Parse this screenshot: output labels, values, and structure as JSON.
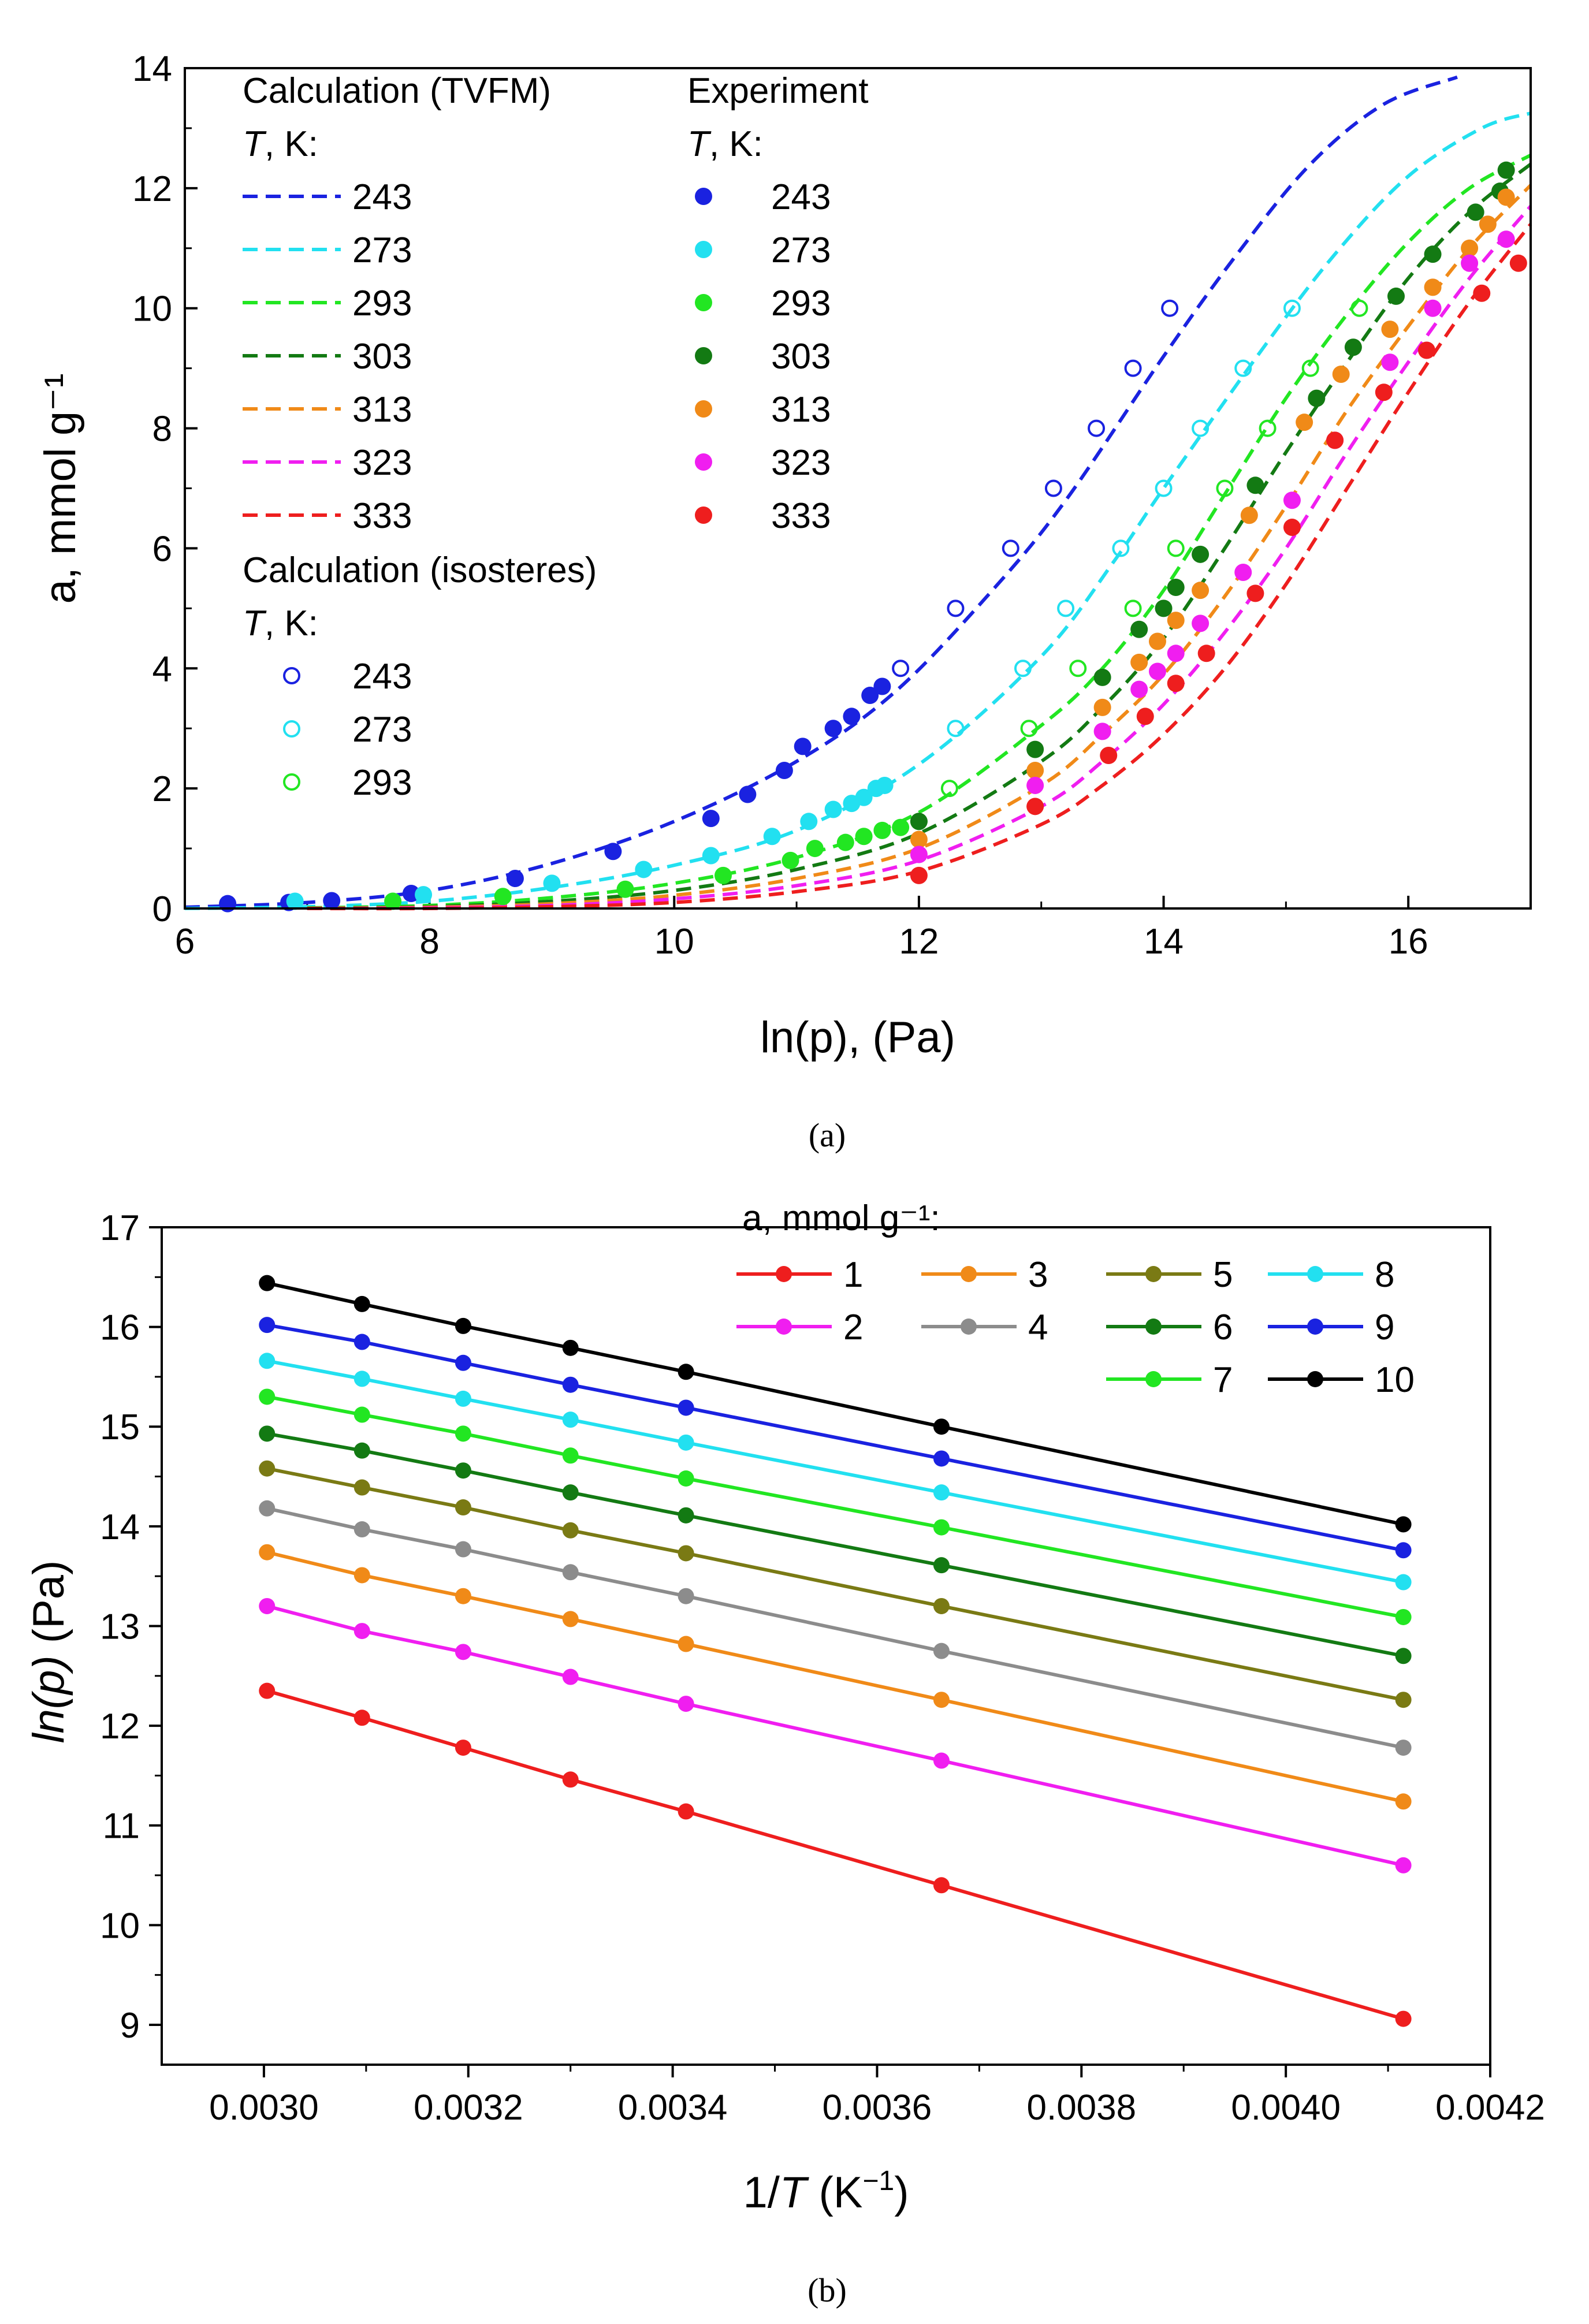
{
  "chart_data": [
    {
      "type": "scatter",
      "title": "",
      "xlabel": "ln(p), (Pa)",
      "ylabel": "a, mmol g⁻¹",
      "xlim": [
        6,
        17
      ],
      "ylim": [
        0,
        14
      ],
      "xticks": [
        "6",
        "8",
        "10",
        "12",
        "14",
        "16"
      ],
      "yticks": [
        "0",
        "2",
        "4",
        "6",
        "8",
        "10",
        "12",
        "14"
      ],
      "caption": "(a)",
      "legend": {
        "calc_title": "Calculation (TVFM)",
        "exp_title": "Experiment",
        "iso_title": "Calculation (isosteres)",
        "t_prefix": "T",
        "t_suffix": ", K:"
      },
      "colors": {
        "243": "#1a22e0",
        "273": "#22e0f0",
        "293": "#22e622",
        "303": "#137a13",
        "313": "#f08a18",
        "323": "#f01ef0",
        "333": "#ee1e1e"
      },
      "tvfm_series": [
        {
          "name": "243",
          "x": [
            6.0,
            7.0,
            8.0,
            9.0,
            10.0,
            11.0,
            11.8,
            12.6,
            13.2,
            14.0,
            14.6,
            15.2,
            15.8,
            16.4
          ],
          "y": [
            0.02,
            0.1,
            0.3,
            0.75,
            1.45,
            2.45,
            3.6,
            5.3,
            6.8,
            9.2,
            10.9,
            12.4,
            13.4,
            13.85
          ]
        },
        {
          "name": "273",
          "x": [
            6.0,
            7.0,
            8.0,
            9.0,
            10.0,
            11.0,
            12.0,
            13.0,
            13.6,
            14.0,
            14.8,
            15.4,
            16.0,
            16.6,
            17.0
          ],
          "y": [
            0.0,
            0.03,
            0.12,
            0.35,
            0.72,
            1.3,
            2.4,
            4.2,
            5.8,
            7.0,
            9.3,
            10.9,
            12.2,
            13.0,
            13.25
          ]
        },
        {
          "name": "293",
          "x": [
            7.0,
            8.0,
            9.0,
            10.0,
            11.0,
            12.0,
            13.0,
            13.5,
            14.0,
            14.5,
            15.0,
            15.5,
            16.0,
            16.5,
            17.0
          ],
          "y": [
            0.01,
            0.05,
            0.18,
            0.42,
            0.85,
            1.6,
            3.05,
            4.0,
            5.3,
            6.9,
            8.5,
            9.9,
            11.1,
            12.0,
            12.55
          ]
        },
        {
          "name": "303",
          "x": [
            7.0,
            8.0,
            9.0,
            10.0,
            11.0,
            12.0,
            13.0,
            13.5,
            14.0,
            14.5,
            15.0,
            15.5,
            16.0,
            16.5,
            17.0
          ],
          "y": [
            0.0,
            0.03,
            0.12,
            0.3,
            0.65,
            1.25,
            2.45,
            3.35,
            4.5,
            6.0,
            7.6,
            9.1,
            10.5,
            11.6,
            12.4
          ]
        },
        {
          "name": "313",
          "x": [
            7.0,
            8.0,
            9.0,
            10.0,
            11.0,
            12.0,
            13.0,
            13.5,
            14.0,
            14.5,
            15.0,
            15.5,
            16.0,
            16.5,
            17.0
          ],
          "y": [
            0.0,
            0.02,
            0.08,
            0.22,
            0.5,
            1.0,
            2.05,
            2.9,
            3.9,
            5.2,
            6.7,
            8.3,
            9.7,
            11.0,
            12.05
          ]
        },
        {
          "name": "323",
          "x": [
            7.0,
            8.0,
            9.0,
            10.0,
            11.0,
            12.0,
            13.0,
            13.5,
            14.0,
            14.5,
            15.0,
            15.5,
            16.0,
            16.5,
            17.0
          ],
          "y": [
            0.0,
            0.01,
            0.05,
            0.16,
            0.38,
            0.8,
            1.7,
            2.45,
            3.4,
            4.6,
            6.0,
            7.6,
            9.1,
            10.5,
            11.7
          ]
        },
        {
          "name": "333",
          "x": [
            7.0,
            8.0,
            9.0,
            10.0,
            11.0,
            12.0,
            13.0,
            13.5,
            14.0,
            14.5,
            15.0,
            15.5,
            16.0,
            16.5,
            17.0
          ],
          "y": [
            0.0,
            0.0,
            0.03,
            0.1,
            0.28,
            0.62,
            1.4,
            2.05,
            2.9,
            4.0,
            5.4,
            7.0,
            8.6,
            10.1,
            11.4
          ]
        }
      ],
      "experiment_series": [
        {
          "name": "243",
          "x": [
            6.35,
            6.85,
            7.2,
            7.85,
            8.7,
            9.5,
            10.3,
            10.6,
            10.9,
            11.05,
            11.3,
            11.45,
            11.6,
            11.7
          ],
          "y": [
            0.08,
            0.1,
            0.13,
            0.25,
            0.5,
            0.95,
            1.5,
            1.9,
            2.3,
            2.7,
            3.0,
            3.2,
            3.55,
            3.7
          ]
        },
        {
          "name": "273",
          "x": [
            6.9,
            7.95,
            9.0,
            9.75,
            10.3,
            10.8,
            11.1,
            11.3,
            11.45,
            11.55,
            11.65,
            11.72
          ],
          "y": [
            0.12,
            0.23,
            0.42,
            0.65,
            0.88,
            1.2,
            1.45,
            1.65,
            1.75,
            1.85,
            2.0,
            2.05
          ]
        },
        {
          "name": "293",
          "x": [
            7.7,
            8.6,
            9.6,
            10.4,
            10.95,
            11.15,
            11.4,
            11.55,
            11.7,
            11.85,
            12.0
          ],
          "y": [
            0.12,
            0.2,
            0.32,
            0.55,
            0.8,
            1.0,
            1.1,
            1.2,
            1.3,
            1.35,
            1.45
          ]
        },
        {
          "name": "303",
          "x": [
            12.0,
            12.95,
            13.5,
            13.8,
            14.0,
            14.1,
            14.3,
            14.75,
            15.25,
            15.55,
            15.9,
            16.2,
            16.55,
            16.75,
            16.8
          ],
          "y": [
            1.45,
            2.65,
            3.85,
            4.65,
            5.0,
            5.35,
            5.9,
            7.05,
            8.5,
            9.35,
            10.2,
            10.9,
            11.6,
            11.95,
            12.3
          ]
        },
        {
          "name": "313",
          "x": [
            12.0,
            12.95,
            13.5,
            13.8,
            13.95,
            14.1,
            14.3,
            14.7,
            15.15,
            15.45,
            15.85,
            16.2,
            16.5,
            16.65,
            16.8
          ],
          "y": [
            1.15,
            2.3,
            3.35,
            4.1,
            4.45,
            4.8,
            5.3,
            6.55,
            8.1,
            8.9,
            9.65,
            10.35,
            11.0,
            11.4,
            11.85
          ]
        },
        {
          "name": "323",
          "x": [
            12.0,
            12.95,
            13.5,
            13.8,
            13.95,
            14.1,
            14.3,
            14.65,
            15.05,
            15.4,
            15.85,
            16.2,
            16.5,
            16.8
          ],
          "y": [
            0.9,
            2.05,
            2.95,
            3.65,
            3.95,
            4.25,
            4.75,
            5.6,
            6.8,
            7.8,
            9.1,
            10.0,
            10.75,
            11.15
          ]
        },
        {
          "name": "333",
          "x": [
            12.0,
            12.95,
            13.55,
            13.85,
            14.1,
            14.35,
            14.75,
            15.05,
            15.4,
            15.8,
            16.15,
            16.6,
            16.9
          ],
          "y": [
            0.55,
            1.7,
            2.55,
            3.2,
            3.75,
            4.25,
            5.25,
            6.35,
            7.8,
            8.6,
            9.3,
            10.25,
            10.75
          ]
        }
      ],
      "isostere_series": [
        {
          "name": "243",
          "x": [
            11.85,
            12.3,
            12.75,
            13.1,
            13.45,
            13.75,
            14.05
          ],
          "y": [
            4,
            5,
            6,
            7,
            8,
            9,
            10
          ]
        },
        {
          "name": "273",
          "x": [
            12.3,
            12.85,
            13.2,
            13.65,
            14.0,
            14.3,
            14.65,
            15.05
          ],
          "y": [
            3,
            4,
            5,
            6,
            7,
            8,
            9,
            10
          ]
        },
        {
          "name": "293",
          "x": [
            12.25,
            12.9,
            13.3,
            13.75,
            14.1,
            14.5,
            14.85,
            15.2,
            15.6
          ],
          "y": [
            2,
            3,
            4,
            5,
            6,
            7,
            8,
            9,
            10
          ]
        }
      ]
    },
    {
      "type": "line",
      "title": "",
      "xlabel": "1/T (K⁻¹)",
      "ylabel": "ln(p) (Pa)",
      "xlim": [
        0.0029,
        0.0042
      ],
      "ylim": [
        8.6,
        17
      ],
      "xticks": [
        "0.0030",
        "0.0032",
        "0.0034",
        "0.0036",
        "0.0038",
        "0.0040",
        "0.0042"
      ],
      "yticks": [
        "9",
        "10",
        "11",
        "12",
        "13",
        "14",
        "15",
        "16",
        "17"
      ],
      "caption": "(b)",
      "legend_title": "a, mmol g⁻¹:",
      "x": [
        0.003003,
        0.003096,
        0.003195,
        0.0033,
        0.003413,
        0.003663,
        0.004115
      ],
      "series": [
        {
          "name": "1",
          "color": "#ee1e1e",
          "values": [
            12.35,
            12.08,
            11.78,
            11.46,
            11.14,
            10.4,
            9.06
          ]
        },
        {
          "name": "2",
          "color": "#f01ef0",
          "values": [
            13.2,
            12.95,
            12.74,
            12.49,
            12.22,
            11.65,
            10.6
          ]
        },
        {
          "name": "3",
          "color": "#f08a18",
          "values": [
            13.74,
            13.51,
            13.3,
            13.07,
            12.82,
            12.26,
            11.24
          ]
        },
        {
          "name": "4",
          "color": "#8c8c8c",
          "values": [
            14.18,
            13.97,
            13.77,
            13.54,
            13.3,
            12.75,
            11.78
          ]
        },
        {
          "name": "5",
          "color": "#7a7a14",
          "values": [
            14.58,
            14.39,
            14.19,
            13.96,
            13.73,
            13.2,
            12.26
          ]
        },
        {
          "name": "6",
          "color": "#137a13",
          "values": [
            14.93,
            14.76,
            14.56,
            14.34,
            14.11,
            13.61,
            12.7
          ]
        },
        {
          "name": "7",
          "color": "#22e622",
          "values": [
            15.3,
            15.12,
            14.93,
            14.71,
            14.48,
            13.99,
            13.09
          ]
        },
        {
          "name": "8",
          "color": "#22e0f0",
          "values": [
            15.66,
            15.48,
            15.28,
            15.07,
            14.84,
            14.34,
            13.44
          ]
        },
        {
          "name": "9",
          "color": "#1a22e0",
          "values": [
            16.02,
            15.85,
            15.64,
            15.42,
            15.19,
            14.68,
            13.76
          ]
        },
        {
          "name": "10",
          "color": "#000000",
          "values": [
            16.44,
            16.23,
            16.01,
            15.79,
            15.55,
            15.0,
            14.02
          ]
        }
      ]
    }
  ]
}
